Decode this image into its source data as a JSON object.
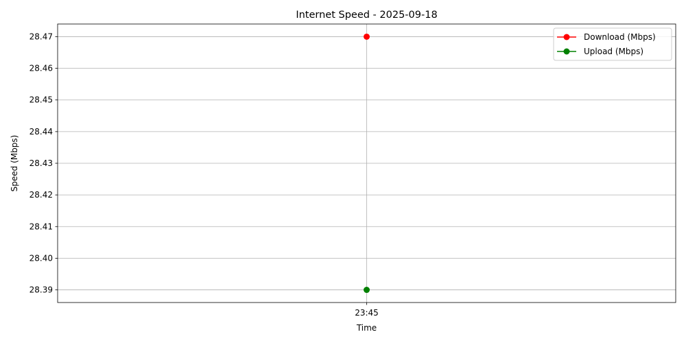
{
  "chart_data": {
    "type": "line",
    "title": "Internet Speed - 2025-09-18",
    "xlabel": "Time",
    "ylabel": "Speed (Mbps)",
    "x": [
      "23:45"
    ],
    "ylim": [
      28.386,
      28.474
    ],
    "yticks": [
      28.39,
      28.4,
      28.41,
      28.42,
      28.43,
      28.44,
      28.45,
      28.46,
      28.47
    ],
    "ytick_labels": [
      "28.39",
      "28.40",
      "28.41",
      "28.42",
      "28.43",
      "28.44",
      "28.45",
      "28.46",
      "28.47"
    ],
    "grid": true,
    "legend_position": "top-right",
    "series": [
      {
        "name": "Download (Mbps)",
        "color": "#ff0000",
        "values": [
          28.47
        ]
      },
      {
        "name": "Upload (Mbps)",
        "color": "#008000",
        "values": [
          28.39
        ]
      }
    ]
  }
}
